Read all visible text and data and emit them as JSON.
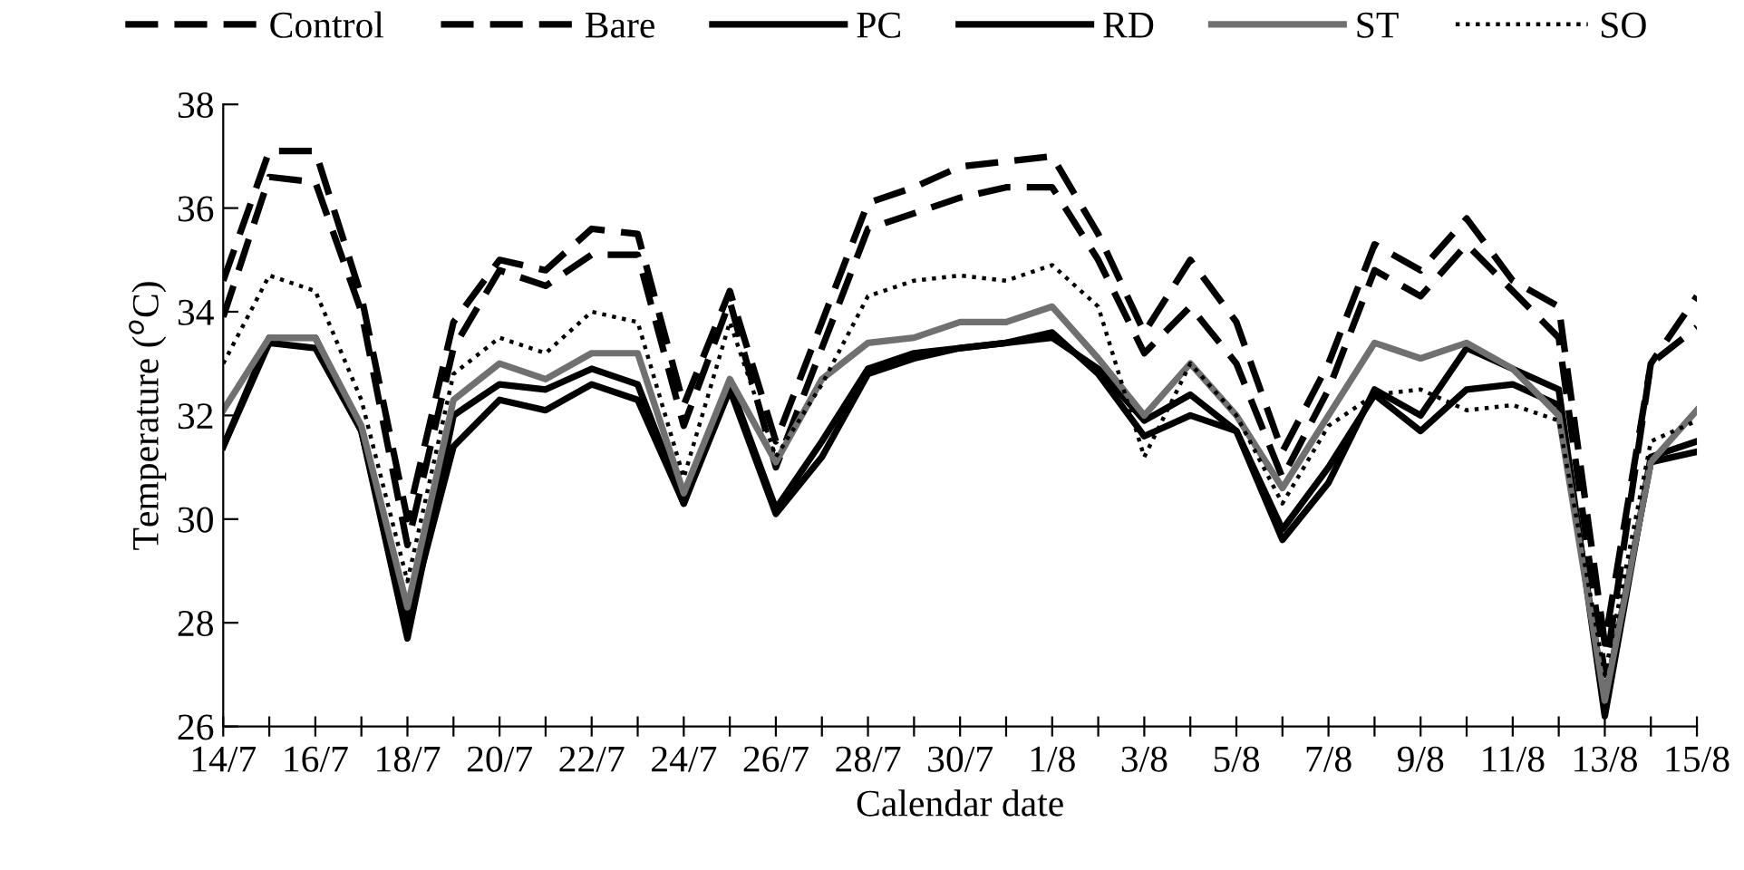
{
  "chart_data": {
    "type": "line",
    "xlabel": "Calendar date",
    "ylabel": "Temperature ($^{o}$C)",
    "categories": [
      "14/7",
      null,
      "16/7",
      null,
      "18/7",
      null,
      "20/7",
      null,
      "22/7",
      null,
      "24/7",
      null,
      "26/7",
      null,
      "28/7",
      null,
      "30/7",
      null,
      "1/8",
      null,
      "3/8",
      null,
      "5/8",
      null,
      "7/8",
      null,
      "9/8",
      null,
      "11/8",
      null,
      "13/8",
      null,
      "15/8"
    ],
    "ylim": [
      26,
      38
    ],
    "yticks": [
      26,
      28,
      30,
      32,
      34,
      36,
      38
    ],
    "grid": false,
    "legend": "top",
    "marker": "none",
    "series": [
      {
        "name": "Control",
        "color": "#000000",
        "line_style": "dashed",
        "values": [
          34.6,
          37.1,
          37.1,
          34.3,
          30.0,
          33.8,
          35.0,
          34.8,
          35.6,
          35.5,
          32.2,
          34.4,
          31.5,
          33.8,
          36.1,
          36.4,
          36.8,
          36.9,
          37.0,
          35.5,
          33.6,
          35.0,
          33.8,
          31.3,
          33.0,
          35.3,
          34.8,
          35.8,
          34.6,
          34.1,
          27.6,
          33.0,
          34.3
        ]
      },
      {
        "name": "Bare",
        "color": "#000000",
        "line_style": "dashed",
        "values": [
          33.9,
          36.6,
          36.5,
          34.0,
          29.5,
          33.3,
          34.8,
          34.5,
          35.1,
          35.1,
          31.8,
          34.2,
          31.0,
          33.3,
          35.6,
          35.9,
          36.2,
          36.4,
          36.4,
          35.0,
          33.2,
          34.1,
          33.0,
          30.8,
          32.5,
          34.8,
          34.3,
          35.3,
          34.4,
          33.5,
          27.0,
          33.0,
          33.7
        ]
      },
      {
        "name": "PC",
        "color": "#000000",
        "line_style": "solid",
        "values": [
          31.4,
          33.4,
          33.3,
          31.7,
          28.0,
          31.4,
          32.3,
          32.1,
          32.6,
          32.3,
          30.3,
          32.5,
          30.1,
          31.2,
          32.8,
          33.1,
          33.3,
          33.4,
          33.6,
          32.8,
          31.6,
          32.0,
          31.7,
          29.8,
          31.0,
          32.4,
          31.7,
          32.5,
          32.6,
          32.2,
          26.5,
          31.1,
          31.3
        ]
      },
      {
        "name": "RD",
        "color": "#000000",
        "line_style": "solid",
        "values": [
          31.4,
          33.5,
          33.5,
          31.7,
          27.7,
          32.0,
          32.6,
          32.5,
          32.9,
          32.6,
          30.3,
          32.6,
          30.2,
          31.5,
          32.9,
          33.2,
          33.3,
          33.4,
          33.5,
          32.9,
          31.9,
          32.4,
          31.7,
          29.6,
          30.7,
          32.5,
          32.0,
          33.3,
          32.9,
          32.5,
          26.2,
          31.2,
          31.5
        ]
      },
      {
        "name": "ST",
        "color": "#707070",
        "line_style": "solid",
        "values": [
          32.1,
          33.5,
          33.5,
          31.8,
          28.3,
          32.3,
          33.0,
          32.7,
          33.2,
          33.2,
          30.5,
          32.7,
          31.1,
          32.7,
          33.4,
          33.5,
          33.8,
          33.8,
          34.1,
          33.1,
          32.0,
          33.0,
          32.0,
          30.6,
          32.0,
          33.4,
          33.1,
          33.4,
          32.9,
          32.0,
          26.5,
          31.1,
          32.1
        ]
      },
      {
        "name": "SO",
        "color": "#000000",
        "line_style": "dotted",
        "values": [
          33.0,
          34.7,
          34.4,
          32.3,
          28.8,
          32.8,
          33.5,
          33.2,
          34.0,
          33.8,
          30.8,
          33.8,
          31.2,
          32.6,
          34.3,
          34.6,
          34.7,
          34.6,
          34.9,
          34.1,
          31.2,
          33.0,
          32.0,
          30.3,
          31.8,
          32.4,
          32.5,
          32.1,
          32.2,
          31.9,
          27.0,
          31.5,
          31.9
        ]
      }
    ]
  }
}
